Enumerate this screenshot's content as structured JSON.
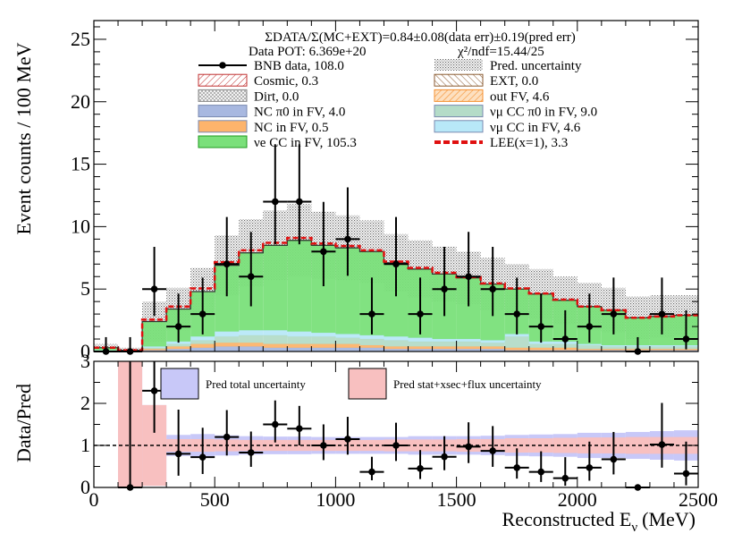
{
  "chart_data": [
    {
      "type": "histogram",
      "title": "ΣDATA/Σ(MC+EXT)=0.84±0.08(data err)±0.19(pred err)",
      "pot_label": "Data POT: 6.369e+20",
      "chi2_label": "χ²/ndf=15.44/25",
      "xlabel": "Reconstructed Eν (MeV)",
      "xlabel_main": "Reconstructed E",
      "xlabel_sub": "ν",
      "xlabel_unit": "(MeV)",
      "ylabel": "Event counts / 100 MeV",
      "xlim": [
        0,
        2500
      ],
      "ylim": [
        0,
        26.5
      ],
      "xticks": [
        0,
        500,
        1000,
        1500,
        2000,
        2500
      ],
      "yticks": [
        0,
        5,
        10,
        15,
        20,
        25
      ],
      "bin_edges": [
        0,
        100,
        200,
        300,
        400,
        500,
        600,
        700,
        800,
        900,
        1000,
        1100,
        1200,
        1300,
        1400,
        1500,
        1600,
        1700,
        1800,
        1900,
        2000,
        2100,
        2200,
        2300,
        2400,
        2500
      ],
      "stack": [
        {
          "name": "NC π0 in FV",
          "color": "#a8b8e0",
          "values": [
            0.1,
            0.0,
            0.1,
            0.2,
            0.3,
            0.4,
            0.4,
            0.3,
            0.3,
            0.3,
            0.3,
            0.3,
            0.2,
            0.2,
            0.2,
            0.2,
            0.2,
            0.1,
            0.1,
            0.1,
            0.1,
            0.1,
            0.1,
            0.1,
            0.1
          ]
        },
        {
          "name": "out FV",
          "color": "#fdb46c",
          "values": [
            0.0,
            0.0,
            0.1,
            0.2,
            0.3,
            0.3,
            0.3,
            0.3,
            0.3,
            0.3,
            0.3,
            0.2,
            0.2,
            0.2,
            0.2,
            0.2,
            0.2,
            0.2,
            0.2,
            0.2,
            0.1,
            0.1,
            0.1,
            0.1,
            0.1
          ]
        },
        {
          "name": "νμ CC π0 in FV",
          "color": "#b4dcc8",
          "values": [
            0.0,
            0.0,
            0.1,
            0.2,
            0.3,
            0.5,
            0.6,
            0.7,
            0.6,
            0.6,
            0.5,
            0.5,
            0.5,
            0.4,
            0.4,
            0.4,
            0.3,
            0.9,
            0.3,
            0.3,
            0.3,
            0.2,
            0.2,
            0.2,
            0.2
          ]
        },
        {
          "name": "νμ CC in FV",
          "color": "#b8e8f8",
          "values": [
            0.0,
            0.0,
            0.1,
            0.2,
            0.3,
            0.4,
            0.4,
            0.4,
            0.4,
            0.3,
            0.3,
            0.3,
            0.3,
            0.3,
            0.2,
            0.2,
            0.2,
            0.2,
            0.2,
            0.2,
            0.1,
            0.1,
            0.1,
            0.1,
            0.1
          ]
        },
        {
          "name": "νe CC in FV",
          "color": "#7ae07a",
          "values": [
            0.2,
            0.1,
            2.0,
            2.6,
            3.6,
            5.3,
            6.2,
            6.8,
            7.3,
            7.0,
            6.9,
            6.7,
            5.9,
            5.5,
            5.2,
            4.9,
            4.5,
            3.6,
            3.8,
            3.3,
            3.0,
            2.8,
            2.2,
            2.3,
            2.4
          ]
        }
      ],
      "lee_values": [
        0.0,
        0.0,
        0.15,
        0.2,
        0.25,
        0.25,
        0.2,
        0.2,
        0.2,
        0.15,
        0.15,
        0.1,
        0.1,
        0.1,
        0.1,
        0.05,
        0.05,
        0.05,
        0.05,
        0.05,
        0.0,
        0.0,
        0.0,
        0.0,
        0.0
      ],
      "pred_unc": [
        0.3,
        0.2,
        1.6,
        1.7,
        1.9,
        2.4,
        2.7,
        2.8,
        2.9,
        2.7,
        2.6,
        2.5,
        2.3,
        2.3,
        2.2,
        2.1,
        2.1,
        2.0,
        2.0,
        1.9,
        1.9,
        1.8,
        1.7,
        1.7,
        1.6
      ],
      "data": {
        "x": [
          50,
          150,
          250,
          350,
          450,
          550,
          650,
          750,
          850,
          950,
          1050,
          1150,
          1250,
          1350,
          1450,
          1550,
          1650,
          1750,
          1850,
          1950,
          2050,
          2150,
          2250,
          2350,
          2450
        ],
        "y": [
          0,
          0,
          5,
          2,
          3,
          7,
          6,
          12,
          12,
          8,
          9,
          3,
          7,
          3,
          5,
          6,
          5,
          3,
          2,
          1,
          2,
          3,
          0,
          3,
          1
        ],
        "err_lo": [
          0,
          0,
          2.16,
          1.29,
          1.63,
          2.58,
          2.38,
          3.41,
          3.41,
          2.77,
          2.94,
          1.63,
          2.58,
          1.63,
          2.16,
          2.38,
          2.16,
          1.63,
          1.29,
          0.83,
          1.29,
          1.63,
          0,
          1.63,
          0.83
        ],
        "err_hi": [
          1.15,
          1.15,
          3.38,
          2.64,
          2.92,
          3.77,
          3.58,
          4.6,
          4.6,
          3.98,
          4.14,
          2.92,
          3.77,
          2.92,
          3.38,
          3.58,
          3.38,
          2.92,
          2.64,
          2.3,
          2.64,
          2.92,
          1.15,
          2.92,
          2.3
        ]
      },
      "legend": [
        {
          "label": "BNB data, 108.0",
          "kind": "data"
        },
        {
          "label": "Pred. uncertainty",
          "kind": "hatch-dots"
        },
        {
          "label": "Cosmic, 0.3",
          "kind": "hatch-red"
        },
        {
          "label": "EXT, 0.0",
          "kind": "hatch-brown"
        },
        {
          "label": "Dirt, 0.0",
          "kind": "hatch-gray"
        },
        {
          "label": "out FV, 4.6",
          "kind": "hatch-orange",
          "color": "#fdb46c"
        },
        {
          "label": "NC π0 in FV,  4.0",
          "kind": "fill",
          "color": "#a8b8e0"
        },
        {
          "label": "νμ CC π0 in FV, 9.0",
          "kind": "fill",
          "color": "#b4dcc8"
        },
        {
          "label": "NC in FV, 0.5",
          "kind": "fill",
          "color": "#fdb46c"
        },
        {
          "label": "νμ CC in FV, 4.6",
          "kind": "fill",
          "color": "#b8e8f8"
        },
        {
          "label": "νe CC in FV, 105.3",
          "kind": "fill",
          "color": "#7ae07a"
        },
        {
          "label": "LEE(x=1), 3.3",
          "kind": "dash",
          "color": "#e01010"
        }
      ]
    },
    {
      "type": "ratio",
      "ylabel": "Data/Pred",
      "ylim": [
        0,
        3
      ],
      "yticks": [
        0,
        1,
        2,
        3
      ],
      "reference_line": 1,
      "band_total_color": "#c8c8f8",
      "band_total_label": "Pred total uncertainty",
      "band_sys_color": "#f8c0c0",
      "band_sys_label": "Pred stat+xsec+flux uncertainty",
      "band_total": [
        3.0,
        3.0,
        0.96,
        0.25,
        0.27,
        0.24,
        0.22,
        0.21,
        0.21,
        0.2,
        0.2,
        0.2,
        0.2,
        0.22,
        0.22,
        0.22,
        0.23,
        0.25,
        0.26,
        0.27,
        0.3,
        0.3,
        0.32,
        0.34,
        0.36
      ],
      "band_sys": [
        3.0,
        3.0,
        0.96,
        0.15,
        0.15,
        0.14,
        0.13,
        0.13,
        0.13,
        0.13,
        0.13,
        0.13,
        0.14,
        0.14,
        0.14,
        0.15,
        0.15,
        0.17,
        0.17,
        0.18,
        0.19,
        0.19,
        0.2,
        0.2,
        0.2
      ],
      "points": {
        "x": [
          150,
          250,
          350,
          450,
          550,
          650,
          750,
          850,
          950,
          1050,
          1150,
          1250,
          1350,
          1450,
          1550,
          1650,
          1750,
          1850,
          1950,
          2050,
          2150,
          2250,
          2350,
          2450
        ],
        "y": [
          0,
          2.3,
          0.8,
          0.72,
          1.2,
          0.83,
          1.5,
          1.4,
          1.0,
          1.15,
          0.37,
          1.0,
          0.45,
          0.73,
          0.97,
          0.87,
          0.47,
          0.37,
          0.22,
          0.47,
          0.67,
          0,
          1.02,
          0.33
        ],
        "err_lo": [
          0,
          1.0,
          0.52,
          0.4,
          0.44,
          0.34,
          0.43,
          0.4,
          0.35,
          0.37,
          0.2,
          0.37,
          0.25,
          0.32,
          0.39,
          0.38,
          0.26,
          0.24,
          0.18,
          0.31,
          0.36,
          0,
          0.55,
          0.28
        ],
        "err_hi": [
          3.0,
          1.55,
          1.05,
          0.7,
          0.64,
          0.5,
          0.57,
          0.54,
          0.5,
          0.53,
          0.36,
          0.54,
          0.44,
          0.49,
          0.58,
          0.59,
          0.46,
          0.49,
          0.5,
          0.62,
          0.65,
          0,
          0.99,
          0.76
        ]
      },
      "xlim": [
        0,
        2500
      ],
      "xticks": [
        0,
        500,
        1000,
        1500,
        2000,
        2500
      ]
    }
  ]
}
